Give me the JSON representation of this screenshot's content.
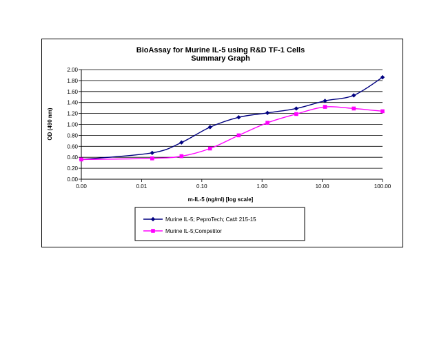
{
  "chart_data": {
    "type": "line",
    "title": "BioAssay for Murine IL-5 using R&D TF-1 Cells",
    "subtitle": "Summary Graph",
    "xlabel": "m-IL-5  (ng/ml) [log scale]",
    "ylabel": "OD (490 nm)",
    "x_scale": "log",
    "xlim": [
      0.001,
      100
    ],
    "ylim": [
      0,
      2
    ],
    "x_ticks": [
      0.001,
      0.01,
      0.1,
      1,
      10,
      100
    ],
    "x_tick_labels": [
      "0.00",
      "0.01",
      "0.10",
      "1.00",
      "10.00",
      "100.00"
    ],
    "y_ticks": [
      0,
      0.2,
      0.4,
      0.6,
      0.8,
      1.0,
      1.2,
      1.4,
      1.6,
      1.8,
      2.0
    ],
    "y_tick_labels": [
      "0.00",
      "0.20",
      "0.40",
      "0.60",
      "0.80",
      "1.00",
      "1.20",
      "1.40",
      "1.60",
      "1.80",
      "2.00"
    ],
    "grid": "horizontal",
    "legend_position": "bottom",
    "series": [
      {
        "name": "Murine IL-5; PeproTech; Cat# 215-15",
        "color": "#000080",
        "marker": "diamond",
        "x": [
          0.001,
          0.015,
          0.046,
          0.137,
          0.41,
          1.23,
          3.7,
          11.1,
          33.3,
          100
        ],
        "y": [
          0.36,
          0.48,
          0.67,
          0.95,
          1.13,
          1.21,
          1.29,
          1.43,
          1.53,
          1.86
        ]
      },
      {
        "name": "Murine IL-5;Competitor",
        "color": "#FF00FF",
        "marker": "square",
        "x": [
          0.001,
          0.015,
          0.046,
          0.137,
          0.41,
          1.23,
          3.7,
          11.1,
          33.3,
          100
        ],
        "y": [
          0.36,
          0.38,
          0.42,
          0.56,
          0.8,
          1.03,
          1.19,
          1.32,
          1.29,
          1.24
        ]
      }
    ]
  }
}
